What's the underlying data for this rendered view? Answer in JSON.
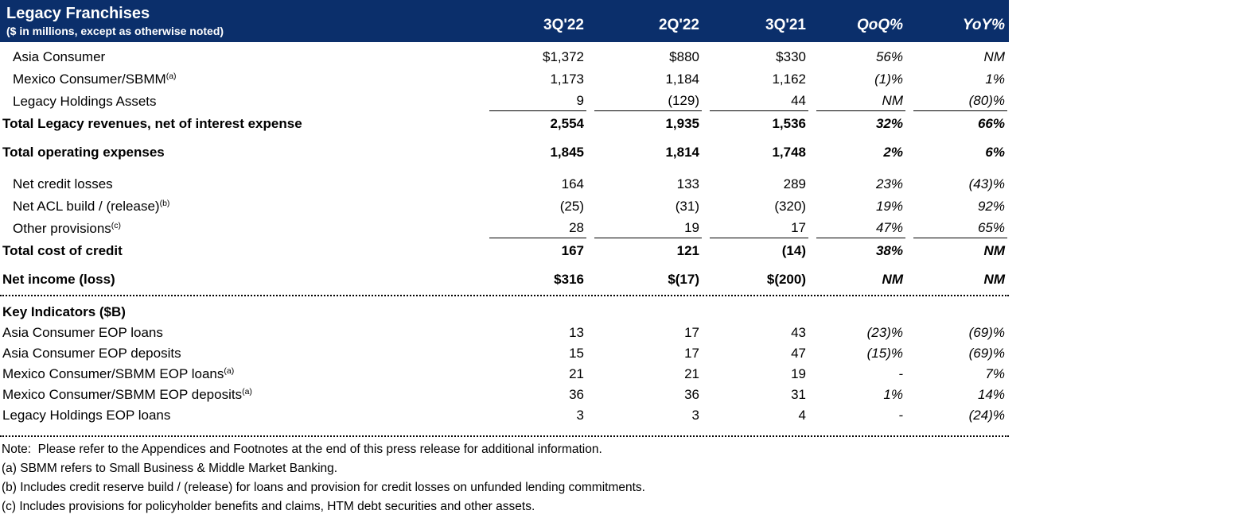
{
  "header": {
    "title": "Legacy Franchises",
    "subtitle": "($ in millions, except as otherwise noted)",
    "columns": [
      "3Q'22",
      "2Q'22",
      "3Q'21",
      "QoQ%",
      "YoY%"
    ]
  },
  "table": {
    "rows": [
      {
        "label": "Asia Consumer",
        "sup": "",
        "values": [
          "$1,372",
          "$880",
          "$330",
          "56%",
          "NM"
        ]
      },
      {
        "label": "Mexico Consumer/SBMM",
        "sup": "(a)",
        "values": [
          "1,173",
          "1,184",
          "1,162",
          "(1)%",
          "1%"
        ]
      },
      {
        "label": "Legacy Holdings Assets",
        "sup": "",
        "values": [
          "9",
          "(129)",
          "44",
          "NM",
          "(80)%"
        ]
      },
      {
        "label": "Total Legacy revenues, net of interest expense",
        "sup": "",
        "values": [
          "2,554",
          "1,935",
          "1,536",
          "32%",
          "66%"
        ]
      },
      {
        "label": "Total operating expenses",
        "sup": "",
        "values": [
          "1,845",
          "1,814",
          "1,748",
          "2%",
          "6%"
        ]
      },
      {
        "label": "Net credit losses",
        "sup": "",
        "values": [
          "164",
          "133",
          "289",
          "23%",
          "(43)%"
        ]
      },
      {
        "label": "Net ACL build / (release)",
        "sup": "(b)",
        "values": [
          "(25)",
          "(31)",
          "(320)",
          "19%",
          "92%"
        ]
      },
      {
        "label": "Other provisions",
        "sup": "(c)",
        "values": [
          "28",
          "19",
          "17",
          "47%",
          "65%"
        ]
      },
      {
        "label": "Total cost of credit",
        "sup": "",
        "values": [
          "167",
          "121",
          "(14)",
          "38%",
          "NM"
        ]
      },
      {
        "label": "Net income (loss)",
        "sup": "",
        "values": [
          "$316",
          "$(17)",
          "$(200)",
          "NM",
          "NM"
        ]
      }
    ]
  },
  "key_indicators": {
    "title": "Key Indicators ($B)",
    "rows": [
      {
        "label": "Asia Consumer EOP loans",
        "sup": "",
        "values": [
          "13",
          "17",
          "43",
          "(23)%",
          "(69)%"
        ]
      },
      {
        "label": "Asia Consumer EOP deposits",
        "sup": "",
        "values": [
          "15",
          "17",
          "47",
          "(15)%",
          "(69)%"
        ]
      },
      {
        "label": "Mexico Consumer/SBMM EOP loans",
        "sup": "(a)",
        "values": [
          "21",
          "21",
          "19",
          "-",
          "7%"
        ]
      },
      {
        "label": "Mexico Consumer/SBMM EOP deposits",
        "sup": "(a)",
        "values": [
          "36",
          "36",
          "31",
          "1%",
          "14%"
        ]
      },
      {
        "label": "Legacy Holdings EOP loans",
        "sup": "",
        "values": [
          "3",
          "3",
          "4",
          "-",
          "(24)%"
        ]
      }
    ]
  },
  "footnotes": [
    "Note:  Please refer to the Appendices and Footnotes at the end of this press release for additional information.",
    "(a) SBMM refers to Small Business & Middle Market Banking.",
    "(b) Includes credit reserve build / (release) for loans and provision for credit losses on unfunded lending commitments.",
    "(c) Includes provisions for policyholder benefits and claims, HTM debt securities and other assets."
  ],
  "colors": {
    "header_bg": "#0B2F6B",
    "header_text": "#FFFFFF",
    "body_text": "#000000"
  }
}
